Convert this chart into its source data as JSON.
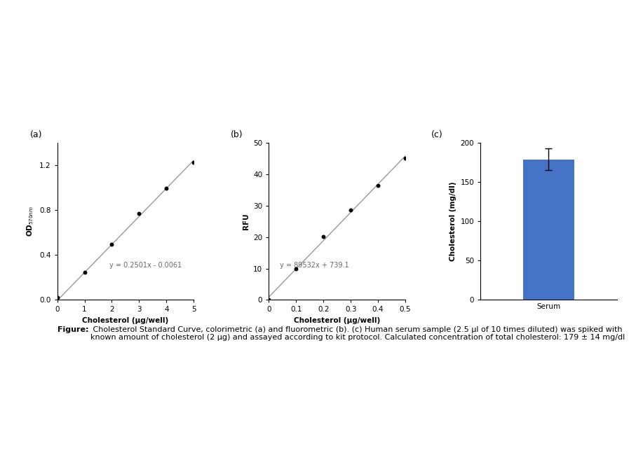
{
  "panel_a": {
    "label": "(a)",
    "x_data": [
      0,
      1,
      2,
      3,
      4,
      5
    ],
    "y_data": [
      0.024,
      0.244,
      0.494,
      0.769,
      0.994,
      1.224
    ],
    "slope": 0.2501,
    "intercept": -0.0061,
    "equation": "y = 0.2501x - 0.0061",
    "xlabel": "Cholesterol (μg/well)",
    "ylabel": "OD$_{570nm}$",
    "xlim": [
      0,
      5
    ],
    "ylim": [
      0,
      1.4
    ],
    "xticks": [
      0,
      1,
      2,
      3,
      4,
      5
    ],
    "yticks": [
      0,
      0.4,
      0.8,
      1.2
    ],
    "line_color": "#999999",
    "marker_color": "#000000"
  },
  "panel_b": {
    "label": "(b)",
    "x_data": [
      0,
      0.1,
      0.2,
      0.3,
      0.4,
      0.5
    ],
    "y_data": [
      0.0,
      9.8,
      20.2,
      28.5,
      36.5,
      45.2
    ],
    "equation": "y = 89532x + 739.1",
    "xlabel": "Cholesterol (μg/well)",
    "ylabel": "RFU",
    "xlim": [
      0,
      0.5
    ],
    "ylim": [
      0,
      50
    ],
    "xticks": [
      0,
      0.1,
      0.2,
      0.3,
      0.4,
      0.5
    ],
    "xtick_labels": [
      "0",
      "0.1",
      "0.2",
      "0.3",
      "0.4",
      "0.5"
    ],
    "yticks": [
      0,
      10,
      20,
      30,
      40,
      50
    ],
    "line_color": "#999999",
    "marker_color": "#000000"
  },
  "panel_c": {
    "label": "(c)",
    "bar_value": 179,
    "bar_error": 14,
    "bar_color": "#4472C4",
    "xlabel": "Serum",
    "ylabel": "Cholesterol (mg/dl)",
    "ylim": [
      0,
      200
    ],
    "yticks": [
      0,
      50,
      100,
      150,
      200
    ]
  },
  "caption_bold": "Figure:",
  "caption_normal": " Cholesterol Standard Curve, colorimetric (a) and fluorometric (b). (c) Human serum sample (2.5 μl of 10 times diluted) was spiked with known amount of cholesterol (2 μg) and assayed according to kit protocol. Calculated concentration of total cholesterol: 179 ± 14 mg/dl",
  "bg_color": "#ffffff"
}
